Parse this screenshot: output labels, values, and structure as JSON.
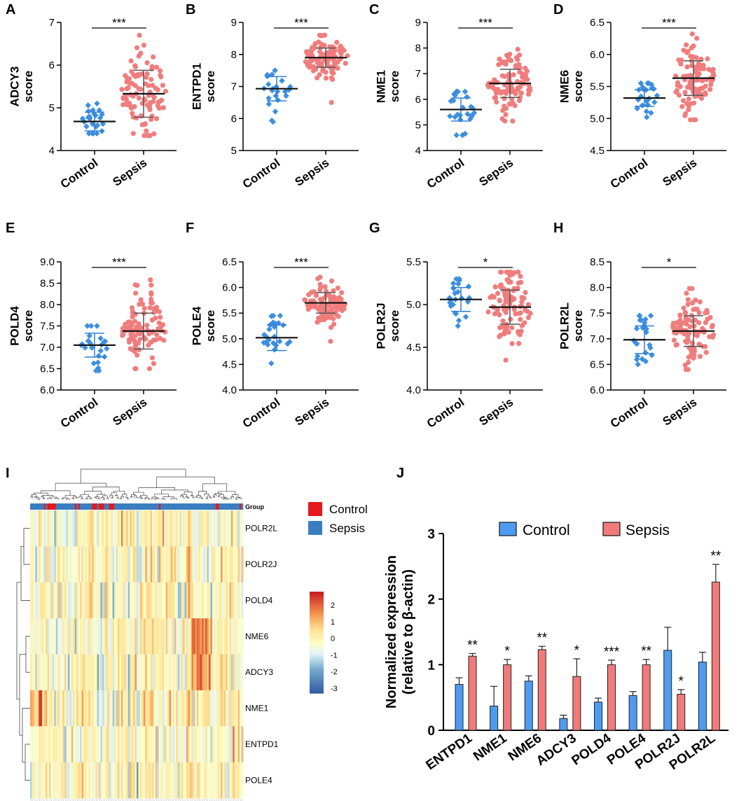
{
  "panel_labels": [
    "A",
    "B",
    "C",
    "D",
    "E",
    "F",
    "G",
    "H",
    "I",
    "J"
  ],
  "colors": {
    "control": "#3d8fe0",
    "sepsis": "#f07d7d",
    "control_bar": "#4e9cf2",
    "sepsis_bar": "#f27a7a",
    "hm_control": "#e41a1c",
    "hm_sepsis": "#3a7ebf"
  },
  "chart_data": [
    {
      "panel": "A",
      "type": "scatter",
      "title": "",
      "ylabel_gene": "ADCY3",
      "ylabel_unit": "score",
      "categories": [
        "Control",
        "Sepsis"
      ],
      "ylim": [
        4,
        7
      ],
      "yticks": [
        4,
        5,
        6,
        7
      ],
      "mean": [
        4.68,
        5.33
      ],
      "sd": [
        0.22,
        0.55
      ],
      "n": [
        24,
        100
      ],
      "range": [
        [
          4.4,
          5.1
        ],
        [
          4.35,
          6.7
        ]
      ],
      "signif": "***"
    },
    {
      "panel": "B",
      "type": "scatter",
      "title": "",
      "ylabel_gene": "ENTPD1",
      "ylabel_unit": "score",
      "categories": [
        "Control",
        "Sepsis"
      ],
      "ylim": [
        5,
        9
      ],
      "yticks": [
        5,
        6,
        7,
        8,
        9
      ],
      "mean": [
        6.93,
        7.9
      ],
      "sd": [
        0.38,
        0.3
      ],
      "n": [
        24,
        100
      ],
      "range": [
        [
          5.9,
          7.5
        ],
        [
          6.5,
          8.6
        ]
      ],
      "signif": "***"
    },
    {
      "panel": "C",
      "type": "scatter",
      "title": "",
      "ylabel_gene": "NME1",
      "ylabel_unit": "score",
      "categories": [
        "Control",
        "Sepsis"
      ],
      "ylim": [
        4,
        9
      ],
      "yticks": [
        4,
        5,
        6,
        7,
        8,
        9
      ],
      "mean": [
        5.6,
        6.62
      ],
      "sd": [
        0.45,
        0.55
      ],
      "n": [
        24,
        100
      ],
      "range": [
        [
          4.6,
          6.3
        ],
        [
          5.15,
          7.95
        ]
      ],
      "signif": "***"
    },
    {
      "panel": "D",
      "type": "scatter",
      "title": "",
      "ylabel_gene": "NME6",
      "ylabel_unit": "score",
      "categories": [
        "Control",
        "Sepsis"
      ],
      "ylim": [
        4.5,
        6.5
      ],
      "yticks": [
        4.5,
        5.0,
        5.5,
        6.0,
        6.5
      ],
      "mean": [
        5.32,
        5.63
      ],
      "sd": [
        0.13,
        0.27
      ],
      "n": [
        24,
        100
      ],
      "range": [
        [
          5.02,
          5.55
        ],
        [
          4.98,
          6.32
        ]
      ],
      "signif": "***"
    },
    {
      "panel": "E",
      "type": "scatter",
      "title": "",
      "ylabel_gene": "POLD4",
      "ylabel_unit": "score",
      "categories": [
        "Control",
        "Sepsis"
      ],
      "ylim": [
        6.0,
        9.0
      ],
      "yticks": [
        6.0,
        6.5,
        7.0,
        7.5,
        8.0,
        8.5,
        9.0
      ],
      "mean": [
        7.05,
        7.38
      ],
      "sd": [
        0.28,
        0.42
      ],
      "n": [
        24,
        100
      ],
      "range": [
        [
          6.45,
          7.5
        ],
        [
          6.5,
          8.58
        ]
      ],
      "signif": "***"
    },
    {
      "panel": "F",
      "type": "scatter",
      "title": "",
      "ylabel_gene": "POLE4",
      "ylabel_unit": "score",
      "categories": [
        "Control",
        "Sepsis"
      ],
      "ylim": [
        4.0,
        6.5
      ],
      "yticks": [
        4.0,
        4.5,
        5.0,
        5.5,
        6.0,
        6.5
      ],
      "mean": [
        5.02,
        5.7
      ],
      "sd": [
        0.25,
        0.2
      ],
      "n": [
        24,
        100
      ],
      "range": [
        [
          4.52,
          5.45
        ],
        [
          4.95,
          6.2
        ]
      ],
      "signif": "***"
    },
    {
      "panel": "G",
      "type": "scatter",
      "title": "",
      "ylabel_gene": "POLR2J",
      "ylabel_unit": "score",
      "categories": [
        "Control",
        "Sepsis"
      ],
      "ylim": [
        4.0,
        5.5
      ],
      "yticks": [
        4.0,
        4.5,
        5.0,
        5.5
      ],
      "mean": [
        5.06,
        4.97
      ],
      "sd": [
        0.14,
        0.2
      ],
      "n": [
        24,
        100
      ],
      "range": [
        [
          4.75,
          5.3
        ],
        [
          4.35,
          5.38
        ]
      ],
      "signif": "*"
    },
    {
      "panel": "H",
      "type": "scatter",
      "title": "",
      "ylabel_gene": "POLR2L",
      "ylabel_unit": "score",
      "categories": [
        "Control",
        "Sepsis"
      ],
      "ylim": [
        6.0,
        8.5
      ],
      "yticks": [
        6.0,
        6.5,
        7.0,
        7.5,
        8.0,
        8.5
      ],
      "mean": [
        6.98,
        7.15
      ],
      "sd": [
        0.27,
        0.3
      ],
      "n": [
        24,
        100
      ],
      "range": [
        [
          6.5,
          7.45
        ],
        [
          6.4,
          7.98
        ]
      ],
      "signif": "*"
    },
    {
      "panel": "I",
      "type": "heatmap",
      "rows": [
        "POLR2L",
        "POLR2J",
        "POLD4",
        "NME6",
        "ADCY3",
        "NME1",
        "ENTPD1",
        "POLE4"
      ],
      "columns": 124,
      "annotation_title": "Group",
      "legend": [
        "Control",
        "Sepsis"
      ],
      "colorbar_ticks": [
        2,
        1,
        0,
        -1,
        -2,
        -3
      ],
      "zlim": [
        -3.3,
        2.8
      ]
    },
    {
      "panel": "J",
      "type": "bar",
      "categories": [
        "ENTPD1",
        "NME1",
        "NME6",
        "ADCY3",
        "POLD4",
        "POLE4",
        "POLR2J",
        "POLR2L"
      ],
      "ylabel_line1": "Normalized expression",
      "ylabel_line2": "(relative to β-actin)",
      "ylim": [
        0,
        3
      ],
      "yticks": [
        0,
        1,
        2,
        3
      ],
      "series": [
        {
          "name": "Control",
          "values": [
            0.7,
            0.37,
            0.75,
            0.18,
            0.43,
            0.53,
            1.22,
            1.04
          ],
          "errors": [
            0.1,
            0.3,
            0.08,
            0.05,
            0.06,
            0.06,
            0.35,
            0.15
          ]
        },
        {
          "name": "Sepsis",
          "values": [
            1.13,
            1.0,
            1.23,
            0.82,
            1.0,
            1.0,
            0.55,
            2.26
          ],
          "errors": [
            0.04,
            0.08,
            0.05,
            0.27,
            0.07,
            0.08,
            0.07,
            0.27
          ]
        }
      ],
      "signif": [
        "**",
        "*",
        "**",
        "*",
        "***",
        "**",
        "*",
        "**"
      ]
    }
  ]
}
